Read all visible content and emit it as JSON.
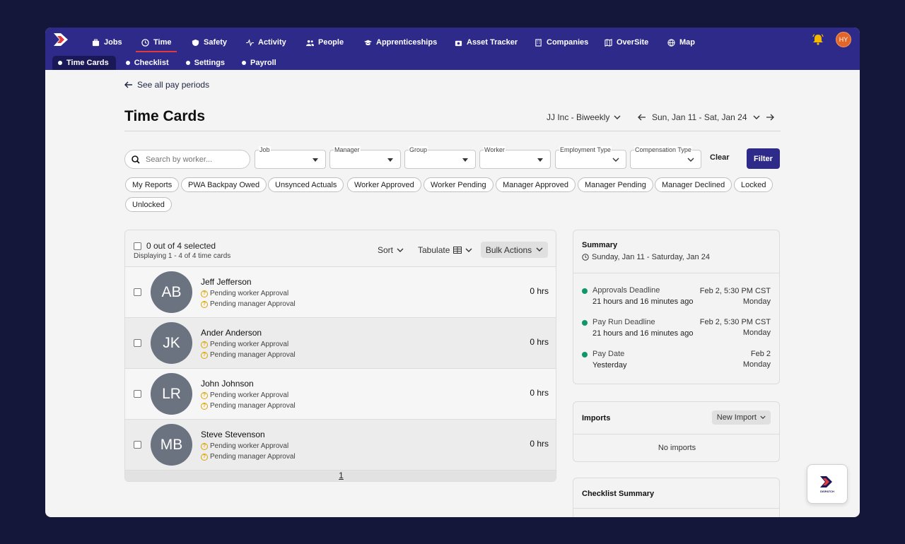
{
  "nav": {
    "items": [
      {
        "label": "Jobs",
        "icon": "briefcase-icon"
      },
      {
        "label": "Time",
        "icon": "clock-icon"
      },
      {
        "label": "Safety",
        "icon": "shield-icon"
      },
      {
        "label": "Activity",
        "icon": "activity-icon"
      },
      {
        "label": "People",
        "icon": "people-icon"
      },
      {
        "label": "Apprenticeships",
        "icon": "graduation-cap-icon"
      },
      {
        "label": "Asset Tracker",
        "icon": "camera-icon"
      },
      {
        "label": "Companies",
        "icon": "building-icon"
      },
      {
        "label": "OverSite",
        "icon": "map-book-icon"
      },
      {
        "label": "Map",
        "icon": "globe-icon"
      }
    ],
    "active": "Time",
    "user_initials": "HY"
  },
  "subnav": {
    "items": [
      {
        "label": "Time Cards"
      },
      {
        "label": "Checklist"
      },
      {
        "label": "Settings"
      },
      {
        "label": "Payroll"
      }
    ]
  },
  "page": {
    "back_link": "See all pay periods",
    "title": "Time Cards",
    "company": "JJ Inc - Biweekly",
    "period": "Sun, Jan 11 - Sat, Jan 24"
  },
  "filters": {
    "search_placeholder": "Search by worker...",
    "dropdowns": [
      "Job",
      "Manager",
      "Group",
      "Worker",
      "Employment Type",
      "Compensation Type"
    ],
    "clear_label": "Clear",
    "filter_label": "Filter",
    "chips": [
      "My Reports",
      "PWA Backpay Owed",
      "Unsynced Actuals",
      "Worker Approved",
      "Worker Pending",
      "Manager Approved",
      "Manager Pending",
      "Manager Declined",
      "Locked",
      "Unlocked"
    ]
  },
  "list": {
    "selected": "0 out of 4 selected",
    "displaying": "Displaying 1 - 4 of 4 time cards",
    "sort_label": "Sort",
    "tabulate_label": "Tabulate",
    "bulk_label": "Bulk Actions",
    "rows": [
      {
        "initials": "AB",
        "name": "Jeff Jefferson",
        "status1": "Pending worker Approval",
        "status2": "Pending manager Approval",
        "hours": "0 hrs"
      },
      {
        "initials": "JK",
        "name": "Ander Anderson",
        "status1": "Pending worker Approval",
        "status2": "Pending manager Approval",
        "hours": "0 hrs"
      },
      {
        "initials": "LR",
        "name": "John Johnson",
        "status1": "Pending worker Approval",
        "status2": "Pending manager Approval",
        "hours": "0 hrs"
      },
      {
        "initials": "MB",
        "name": "Steve Stevenson",
        "status1": "Pending worker Approval",
        "status2": "Pending manager Approval",
        "hours": "0 hrs"
      }
    ],
    "page": "1"
  },
  "summary": {
    "title": "Summary",
    "range": "Sunday, Jan 11 - Saturday, Jan 24",
    "deadlines": [
      {
        "label": "Approvals Deadline",
        "value": "21 hours and 16 minutes ago",
        "date": "Feb 2, 5:30 PM CST",
        "day": "Monday"
      },
      {
        "label": "Pay Run Deadline",
        "value": "21 hours and 16 minutes ago",
        "date": "Feb 2, 5:30 PM CST",
        "day": "Monday"
      },
      {
        "label": "Pay Date",
        "value": "Yesterday",
        "date": "Feb 2",
        "day": "Monday"
      }
    ]
  },
  "imports": {
    "title": "Imports",
    "new_import": "New Import",
    "empty": "No imports"
  },
  "checklist": {
    "title": "Checklist Summary"
  },
  "fab": {
    "brand": "DISPATCH"
  },
  "colors": {
    "nav_bg": "#2e2a8a",
    "accent_red": "#e23b3b",
    "status_green": "#10966b",
    "pending_yellow": "#e0a400"
  }
}
